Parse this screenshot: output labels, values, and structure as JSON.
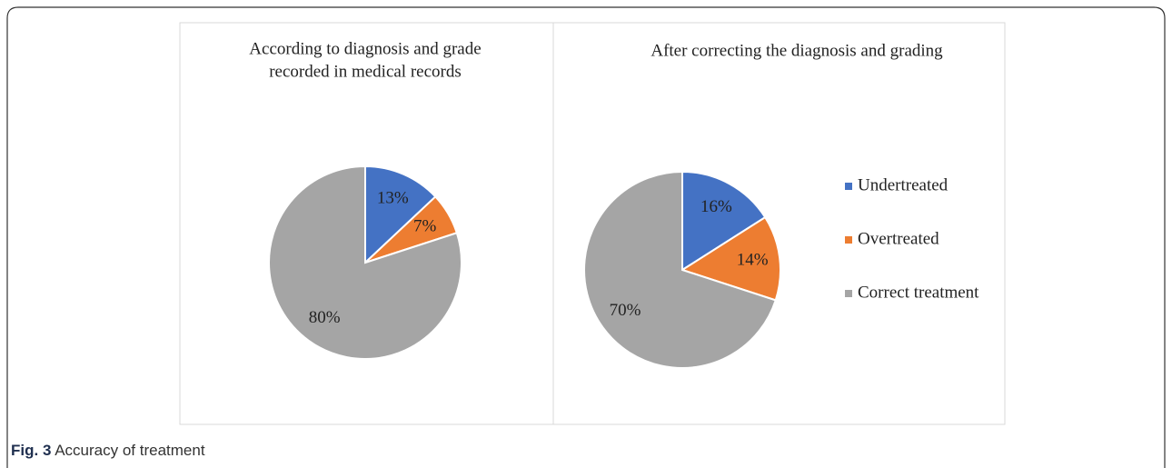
{
  "chart_data": [
    {
      "type": "pie",
      "title": [
        "According to diagnosis and grade",
        "recorded in medical records"
      ],
      "categories": [
        "Undertreated",
        "Overtreated",
        "Correct treatment"
      ],
      "values": [
        13,
        7,
        80
      ],
      "value_labels": [
        "13%",
        "7%",
        "80%"
      ],
      "colors": [
        "#4472c4",
        "#ed7d31",
        "#a5a5a5"
      ]
    },
    {
      "type": "pie",
      "title": [
        "After correcting the diagnosis and grading"
      ],
      "categories": [
        "Undertreated",
        "Overtreated",
        "Correct treatment"
      ],
      "values": [
        16,
        14,
        70
      ],
      "value_labels": [
        "16%",
        "14%",
        "70%"
      ],
      "colors": [
        "#4472c4",
        "#ed7d31",
        "#a5a5a5"
      ],
      "legend": "right"
    }
  ],
  "caption": {
    "label": "Fig. 3",
    "text": "Accuracy of treatment"
  }
}
